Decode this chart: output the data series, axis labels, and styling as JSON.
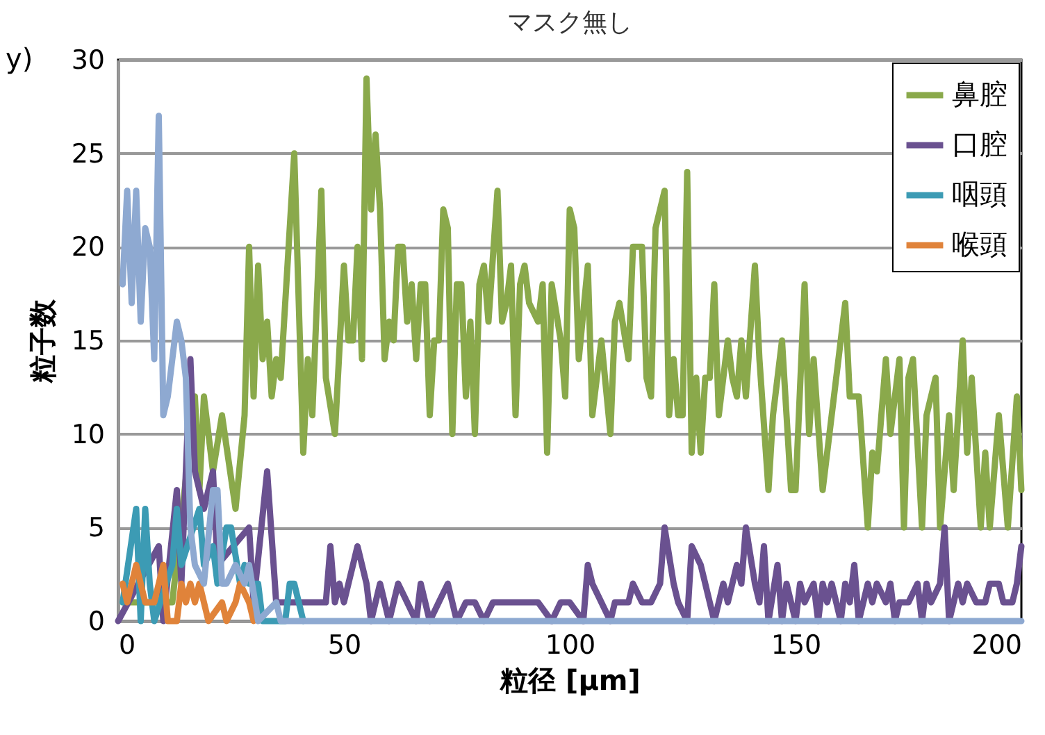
{
  "chart_data": {
    "type": "line",
    "title": "マスク無し",
    "xlabel": "粒径 [μm]",
    "ylabel": "粒子数",
    "annotations": [
      "y)"
    ],
    "xlim": [
      0,
      200
    ],
    "xticks": [
      0,
      50,
      100,
      150,
      200
    ],
    "ylim": [
      0,
      30
    ],
    "yticks": [
      0,
      5,
      10,
      15,
      20,
      25,
      30
    ],
    "grid": "y",
    "legend": "top right",
    "line_style": "solid",
    "series": [
      {
        "name": "鼻腔",
        "color": "#8aa94b",
        "x": [
          1,
          12,
          17,
          18,
          19,
          21,
          23,
          26,
          28,
          29,
          30,
          31,
          32,
          33,
          34,
          35,
          36,
          39,
          41,
          42,
          43,
          45,
          46,
          48,
          50,
          51,
          52,
          53,
          54,
          55,
          56,
          57,
          58,
          59,
          60,
          61,
          62,
          63,
          64,
          65,
          66,
          67,
          68,
          69,
          70,
          71,
          72,
          73,
          74,
          75,
          76,
          77,
          78,
          79,
          80,
          81,
          82,
          84,
          85,
          86,
          87,
          88,
          89,
          90,
          91,
          93,
          94,
          95,
          96,
          98,
          99,
          100,
          101,
          102,
          104,
          105,
          107,
          109,
          110,
          111,
          113,
          114,
          116,
          117,
          118,
          119,
          121,
          122,
          123,
          124,
          125,
          126,
          127,
          128,
          129,
          130,
          131,
          132,
          133,
          134,
          135,
          136,
          137,
          138,
          139,
          141,
          142,
          144,
          145,
          147,
          148,
          149,
          150,
          152,
          153,
          154,
          156,
          161,
          162,
          164,
          166,
          167,
          168,
          169,
          170,
          171,
          173,
          174,
          175,
          176,
          178,
          179,
          181,
          182,
          184,
          185,
          187,
          188,
          189,
          191,
          192,
          193,
          195,
          197,
          199,
          200
        ],
        "values": [
          1,
          1,
          12,
          7,
          12,
          8,
          11,
          6,
          11,
          20,
          12,
          19,
          14,
          16,
          12,
          14,
          13,
          25,
          9,
          14,
          11,
          23,
          13,
          10,
          19,
          15,
          15,
          20,
          14,
          29,
          22,
          26,
          22,
          14,
          16,
          15,
          20,
          20,
          16,
          18,
          14,
          18,
          18,
          11,
          15,
          15,
          22,
          21,
          10,
          18,
          18,
          12,
          16,
          10,
          18,
          19,
          16,
          23,
          16,
          17,
          19,
          11,
          18,
          19,
          17,
          16,
          18,
          9,
          18,
          15,
          12,
          22,
          21,
          14,
          19,
          11,
          15,
          10,
          16,
          17,
          14,
          20,
          20,
          13,
          12,
          21,
          23,
          11,
          14,
          11,
          11,
          24,
          9,
          13,
          9,
          13,
          13,
          18,
          11,
          13,
          15,
          13,
          12,
          15,
          12,
          19,
          14,
          7,
          11,
          15,
          11,
          7,
          7,
          18,
          10,
          14,
          7,
          17,
          12,
          12,
          5,
          9,
          8,
          11,
          14,
          10,
          14,
          5,
          13,
          14,
          5,
          11,
          13,
          5,
          11,
          7,
          15,
          9,
          13,
          5,
          9,
          5,
          11,
          5,
          12,
          7
        ]
      },
      {
        "name": "口腔",
        "color": "#6a5190",
        "x": [
          0,
          9,
          10,
          13,
          14,
          16,
          17,
          19,
          21,
          22,
          29,
          30,
          33,
          35,
          46,
          47,
          48,
          49,
          50,
          53,
          55,
          56,
          58,
          60,
          62,
          64,
          66,
          67,
          69,
          71,
          73,
          75,
          77,
          79,
          81,
          83,
          86,
          90,
          93,
          96,
          98,
          100,
          103,
          104,
          105,
          107,
          109,
          110,
          113,
          114,
          116,
          118,
          120,
          121,
          123,
          124,
          126,
          127,
          129,
          131,
          132,
          134,
          135,
          137,
          138,
          139,
          141,
          142,
          143,
          144,
          146,
          147,
          148,
          150,
          151,
          152,
          154,
          155,
          156,
          157,
          158,
          160,
          161,
          162,
          163,
          164,
          166,
          167,
          168,
          170,
          171,
          172,
          173,
          175,
          177,
          178,
          179,
          180,
          182,
          183,
          184,
          186,
          187,
          188,
          190,
          192,
          193,
          195,
          196,
          198,
          199,
          200
        ],
        "values": [
          0,
          4,
          0,
          7,
          2,
          14,
          8,
          6,
          8,
          3,
          5,
          1,
          8,
          1,
          1,
          4,
          1,
          2,
          1,
          4,
          2,
          0,
          2,
          0,
          2,
          1,
          0,
          2,
          0,
          1,
          2,
          0,
          1,
          1,
          0,
          1,
          1,
          1,
          1,
          0,
          1,
          1,
          0,
          3,
          2,
          1,
          0,
          1,
          1,
          2,
          1,
          1,
          2,
          5,
          2,
          1,
          0,
          4,
          3,
          1,
          0,
          2,
          1,
          3,
          2,
          5,
          2,
          1,
          4,
          0,
          3,
          0,
          2,
          0,
          2,
          1,
          2,
          0,
          2,
          1,
          2,
          0,
          2,
          1,
          3,
          0,
          2,
          1,
          2,
          1,
          2,
          0,
          1,
          1,
          2,
          0,
          2,
          1,
          2,
          5,
          0,
          2,
          1,
          2,
          1,
          1,
          2,
          2,
          1,
          1,
          2,
          4
        ]
      },
      {
        "name": "咽頭",
        "color": "#3c9bb4",
        "x": [
          1,
          4,
          5,
          6,
          7,
          8,
          12,
          13,
          14,
          18,
          19,
          21,
          22,
          24,
          25,
          27,
          28,
          29,
          31,
          32,
          37,
          38,
          39,
          41
        ],
        "values": [
          1,
          6,
          0,
          6,
          2,
          0,
          3,
          6,
          3,
          6,
          3,
          4,
          2,
          5,
          5,
          2,
          3,
          2,
          2,
          0,
          0,
          2,
          2,
          0
        ]
      },
      {
        "name": "喉頭",
        "color": "#e0833a",
        "x": [
          1,
          2,
          4,
          5,
          6,
          8,
          10,
          11,
          13,
          14,
          15,
          16,
          17,
          18,
          20,
          23,
          24,
          26,
          27,
          29,
          30
        ],
        "values": [
          2,
          1,
          3,
          2,
          1,
          1,
          3,
          0,
          0,
          2,
          1,
          2,
          1,
          2,
          0,
          1,
          0,
          1,
          2,
          1,
          0
        ]
      },
      {
        "color": "#8ea9d1",
        "x": [
          1,
          2,
          3,
          4,
          5,
          6,
          7,
          8,
          9,
          10,
          11,
          13,
          14,
          15,
          16,
          17,
          19,
          21,
          22,
          23,
          24,
          26,
          28,
          29,
          31,
          35,
          36,
          200
        ],
        "values": [
          18,
          23,
          17,
          23,
          16,
          21,
          20,
          14,
          27,
          11,
          12,
          16,
          15,
          13,
          5,
          3,
          2,
          7,
          7,
          2,
          2,
          3,
          2,
          3,
          0,
          1,
          0,
          0
        ]
      }
    ]
  }
}
